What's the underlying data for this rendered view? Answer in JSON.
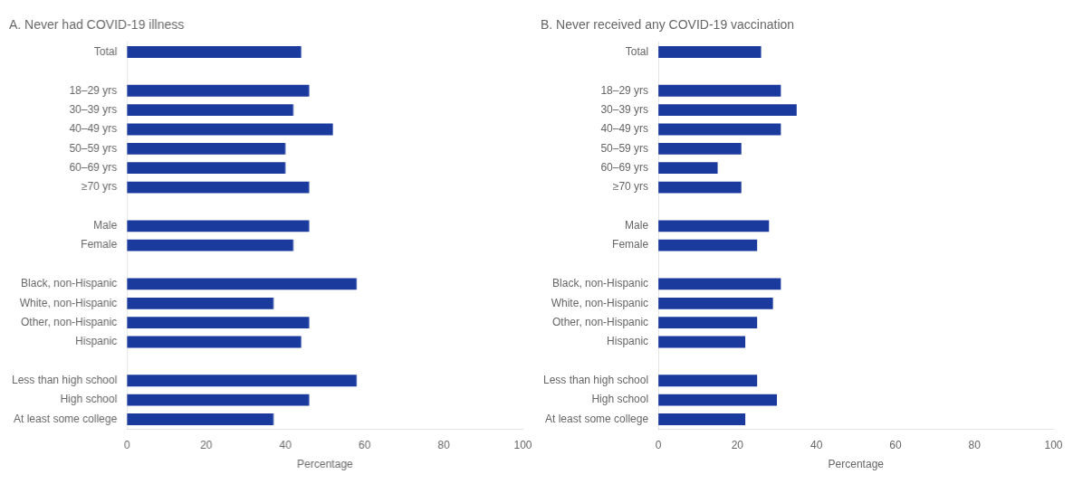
{
  "chart_data": [
    {
      "type": "bar",
      "orientation": "horizontal",
      "title": "A. Never had COVID-19 illness",
      "xlabel": "Percentage",
      "color": "#1a3a9e",
      "categories": [
        "Total",
        null,
        "18–29 yrs",
        "30–39 yrs",
        "40–49 yrs",
        "50–59 yrs",
        "60–69 yrs",
        "≥70 yrs",
        null,
        "Male",
        "Female",
        null,
        "Black, non-Hispanic",
        "White, non-Hispanic",
        "Other, non-Hispanic",
        "Hispanic",
        null,
        "Less than high school",
        "High school",
        "At least some college"
      ],
      "values": [
        44,
        null,
        46,
        42,
        52,
        40,
        40,
        46,
        null,
        46,
        42,
        null,
        58,
        37,
        46,
        44,
        null,
        58,
        46,
        37
      ],
      "xlim": [
        0,
        100
      ],
      "xticks": [
        0,
        20,
        40,
        60,
        80,
        100
      ],
      "grid": false
    },
    {
      "type": "bar",
      "orientation": "horizontal",
      "title": "B. Never received any COVID-19 vaccination",
      "xlabel": "Percentage",
      "color": "#1a3a9e",
      "categories": [
        "Total",
        null,
        "18–29 yrs",
        "30–39 yrs",
        "40–49 yrs",
        "50–59 yrs",
        "60–69 yrs",
        "≥70 yrs",
        null,
        "Male",
        "Female",
        null,
        "Black, non-Hispanic",
        "White, non-Hispanic",
        "Other, non-Hispanic",
        "Hispanic",
        null,
        "Less than high school",
        "High school",
        "At least some college"
      ],
      "values": [
        26,
        null,
        31,
        35,
        31,
        21,
        15,
        21,
        null,
        28,
        25,
        null,
        31,
        29,
        25,
        22,
        null,
        25,
        30,
        22
      ],
      "xlim": [
        0,
        100
      ],
      "xticks": [
        0,
        20,
        40,
        60,
        80,
        100
      ],
      "grid": false
    }
  ]
}
